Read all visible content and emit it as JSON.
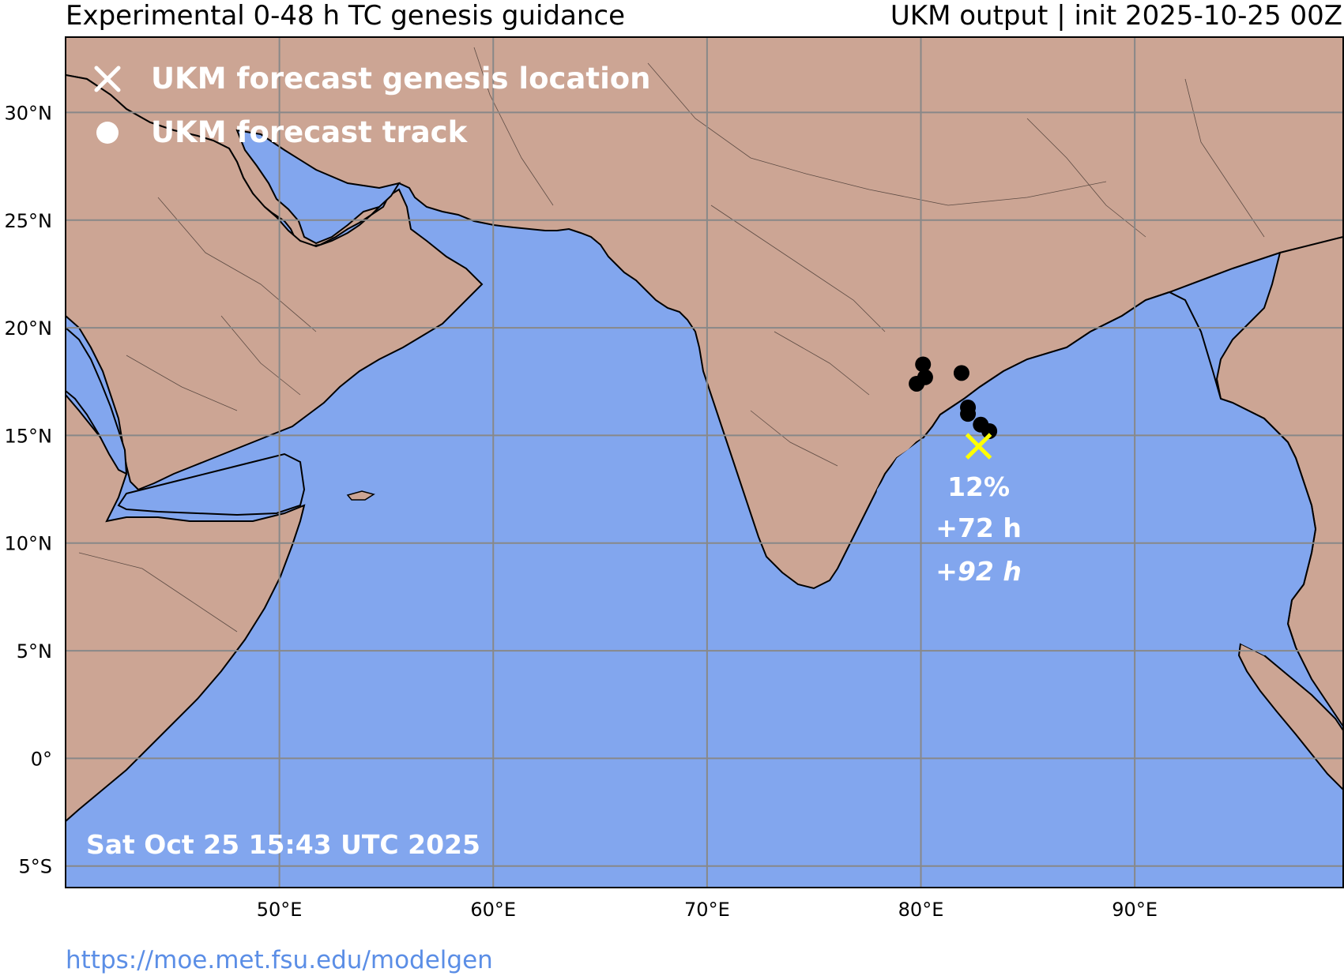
{
  "header": {
    "title_left": "Experimental 0-48 h TC genesis guidance",
    "title_right": "UKM output | init 2025-10-25 00Z"
  },
  "legend": {
    "genesis_label": "UKM forecast genesis location",
    "track_label": "UKM forecast track"
  },
  "axes": {
    "lon_ticks": [
      "50°E",
      "60°E",
      "70°E",
      "80°E",
      "90°E"
    ],
    "lat_ticks": [
      "30°N",
      "25°N",
      "20°N",
      "15°N",
      "10°N",
      "5°N",
      "0°",
      "5°S"
    ]
  },
  "genesis": {
    "probability": "12%",
    "lead_time": "+72 h",
    "lead_time_alt": "+92 h",
    "lon": 82.7,
    "lat": 14.5
  },
  "track_points": [
    {
      "lon": 80.1,
      "lat": 18.3
    },
    {
      "lon": 80.2,
      "lat": 17.7
    },
    {
      "lon": 79.8,
      "lat": 17.4
    },
    {
      "lon": 81.9,
      "lat": 17.9
    },
    {
      "lon": 82.2,
      "lat": 16.3
    },
    {
      "lon": 82.2,
      "lat": 16.0
    },
    {
      "lon": 82.8,
      "lat": 15.5
    },
    {
      "lon": 83.2,
      "lat": 15.2
    }
  ],
  "timestamp": "Sat Oct 25 15:43 UTC 2025",
  "footer": {
    "url": "https://moe.met.fsu.edu/modelgen"
  },
  "colors": {
    "ocean": "#82a6ee",
    "land": "#cca594",
    "grid": "#888888",
    "genesis_marker": "#ffff00",
    "track_marker": "#000000",
    "legend_text": "#ffffff"
  }
}
